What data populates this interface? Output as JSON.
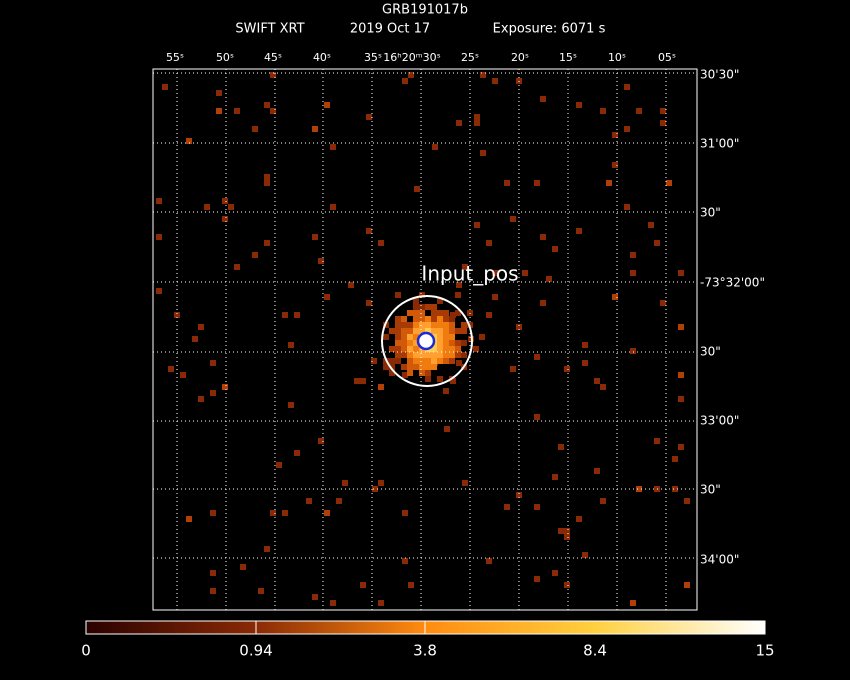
{
  "header": {
    "title": "GRB191017b",
    "instrument": "SWIFT XRT",
    "date": "2019 Oct 17",
    "exposure": "Exposure: 6071 s"
  },
  "top_axis": {
    "labels": [
      "55ˢ",
      "50ˢ",
      "45ˢ",
      "40ˢ",
      "35ˢ",
      "16ʰ20ᵐ30ˢ",
      "25ˢ",
      "20ˢ",
      "15ˢ",
      "10ˢ",
      "05ˢ"
    ]
  },
  "right_axis": {
    "labels": [
      "30'30\"",
      "31'00\"",
      "30\"",
      "-73°32'00\"",
      "30\"",
      "33'00\"",
      "30\"",
      "34'00\""
    ]
  },
  "annotation": "Input_pos",
  "colorbar": {
    "labels": [
      "0",
      "0.94",
      "3.8",
      "8.4",
      "15"
    ]
  }
}
